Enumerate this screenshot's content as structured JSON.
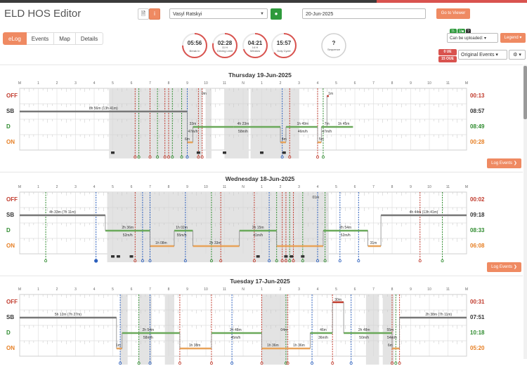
{
  "header": {
    "title": "ELD HOS Editor",
    "driver": "Vasyl Ratskyi",
    "date": "20-Jun-2025",
    "viewer_label": "Go to Viewer"
  },
  "tabs": [
    {
      "label": "eLog",
      "active": true
    },
    {
      "label": "Events",
      "active": false
    },
    {
      "label": "Map",
      "active": false
    },
    {
      "label": "Details",
      "active": false
    }
  ],
  "gauges": [
    {
      "value": "05:56",
      "sub": "",
      "label": "Break In",
      "fraction": 0.75
    },
    {
      "value": "02:28",
      "sub": "11 H",
      "label": "Driving Limit",
      "fraction": 0.78
    },
    {
      "value": "04:21",
      "sub": "14 H",
      "label": "Window",
      "fraction": 0.7
    },
    {
      "value": "15:57",
      "sub": "",
      "label": "Duty Cycle",
      "fraction": 0.65
    },
    {
      "value": "?",
      "sub": "",
      "label": "Sequence",
      "fraction": 0
    }
  ],
  "upload": {
    "badges": [
      {
        "text": "7/-",
        "color": "#2e9a3c"
      },
      {
        "text": "1/■",
        "color": "#2e9a3c"
      },
      {
        "text": "?",
        "color": "#333333"
      }
    ],
    "status": "Can be uploaded:",
    "legend": "Legend"
  },
  "ue_badges": [
    "0 UE",
    "15 OUE"
  ],
  "events_select": "Original Events",
  "gear_label": "⚙ ▾",
  "hour_labels": [
    "M",
    "1",
    "2",
    "3",
    "4",
    "5",
    "6",
    "7",
    "8",
    "9",
    "10",
    "11",
    "N",
    "1",
    "2",
    "3",
    "4",
    "5",
    "6",
    "7",
    "8",
    "9",
    "10",
    "11",
    "M"
  ],
  "status_labels": {
    "off": "OFF",
    "sb": "SB",
    "d": "D",
    "on": "ON"
  },
  "log_events_label": "Log Events ❯",
  "days": [
    {
      "title": "Thursday 19-Jun-2025",
      "totals": {
        "off": "00:13",
        "sb": "08:57",
        "d": "08:49",
        "on": "00:28"
      },
      "segments": [
        {
          "s": "sb",
          "a": 0,
          "b": 9.0
        },
        {
          "s": "on",
          "a": 9.0,
          "b": 9.3
        },
        {
          "s": "d",
          "a": 9.3,
          "b": 11.5
        },
        {
          "s": "d",
          "a": 11.5,
          "b": 14.0
        },
        {
          "s": "on",
          "a": 14.0,
          "b": 14.3
        },
        {
          "s": "d",
          "a": 14.3,
          "b": 16.0
        },
        {
          "s": "on",
          "a": 16.0,
          "b": 16.2
        },
        {
          "s": "d",
          "a": 16.2,
          "b": 17.9
        },
        {
          "s": "off",
          "a": 16.5,
          "b": 16.6
        }
      ],
      "labels": [
        {
          "t": "8h 56m (13h 41m)",
          "h": 4.5,
          "s": "sb"
        },
        {
          "t": "33m",
          "h": 9.3,
          "s": "d"
        },
        {
          "t": "47m/h",
          "h": 9.3,
          "s": "d2"
        },
        {
          "t": "4h 23m",
          "h": 12.0,
          "s": "d"
        },
        {
          "t": "58m/h",
          "h": 12.0,
          "s": "d2"
        },
        {
          "t": "1h 49m",
          "h": 15.2,
          "s": "d"
        },
        {
          "t": "46m/h",
          "h": 15.2,
          "s": "d2"
        },
        {
          "t": "7m",
          "h": 16.5,
          "s": "d"
        },
        {
          "t": "47m/h",
          "h": 16.5,
          "s": "d2"
        },
        {
          "t": "1h 45m",
          "h": 17.4,
          "s": "d"
        },
        {
          "t": "1m",
          "h": 16.7,
          "s": "off"
        },
        {
          "t": "0m",
          "h": 9.9,
          "s": "off"
        },
        {
          "t": "6m",
          "h": 9.0,
          "s": "on"
        },
        {
          "t": "4m",
          "h": 14.2,
          "s": "on"
        },
        {
          "t": "5m",
          "h": 16.2,
          "s": "on"
        }
      ],
      "shades": [
        {
          "a": 4.8,
          "b": 9.8
        },
        {
          "a": 10.0,
          "b": 10.3
        },
        {
          "a": 11.0,
          "b": 12.3
        },
        {
          "a": 12.4,
          "b": 15.0
        }
      ],
      "verticals": [
        {
          "h": 6.2,
          "c": "#c0392b"
        },
        {
          "h": 6.4,
          "c": "#2e8b2e"
        },
        {
          "h": 7.0,
          "c": "#c0392b"
        },
        {
          "h": 7.4,
          "c": "#2e8b2e"
        },
        {
          "h": 7.8,
          "c": "#c0392b"
        },
        {
          "h": 8.0,
          "c": "#c0392b"
        },
        {
          "h": 8.2,
          "c": "#2e8b2e"
        },
        {
          "h": 8.7,
          "c": "#2e8b2e"
        },
        {
          "h": 9.0,
          "c": "#2b5fbd"
        },
        {
          "h": 9.6,
          "c": "#c0392b"
        },
        {
          "h": 9.8,
          "c": "#c0392b"
        },
        {
          "h": 14.1,
          "c": "#2b5fbd"
        },
        {
          "h": 14.5,
          "c": "#c0392b"
        },
        {
          "h": 16.0,
          "c": "#c0392b"
        },
        {
          "h": 16.3,
          "c": "#2e8b2e"
        }
      ],
      "flags": [
        14.0
      ],
      "trucks": [
        5.0,
        9.6,
        11.0,
        13.0,
        14.2
      ],
      "marker": null
    },
    {
      "title": "Wednesday 18-Jun-2025",
      "totals": {
        "off": "00:02",
        "sb": "09:18",
        "d": "08:33",
        "on": "06:08"
      },
      "segments": [
        {
          "s": "sb",
          "a": 0,
          "b": 4.6
        },
        {
          "s": "d",
          "a": 4.6,
          "b": 7.0
        },
        {
          "s": "on",
          "a": 7.0,
          "b": 8.3
        },
        {
          "s": "d",
          "a": 8.3,
          "b": 9.3
        },
        {
          "s": "on",
          "a": 9.3,
          "b": 11.8
        },
        {
          "s": "d",
          "a": 11.8,
          "b": 13.8
        },
        {
          "s": "on",
          "a": 13.8,
          "b": 16.3
        },
        {
          "s": "d",
          "a": 16.3,
          "b": 18.7
        },
        {
          "s": "on",
          "a": 18.7,
          "b": 19.4
        },
        {
          "s": "sb",
          "a": 19.4,
          "b": 24
        }
      ],
      "labels": [
        {
          "t": "4h 33m (7h 11m)",
          "h": 2.3,
          "s": "sb"
        },
        {
          "t": "2h 36m",
          "h": 5.8,
          "s": "d"
        },
        {
          "t": "52m/h",
          "h": 5.8,
          "s": "d2"
        },
        {
          "t": "1h 08m",
          "h": 7.6,
          "s": "on"
        },
        {
          "t": "1h 02m",
          "h": 8.7,
          "s": "d"
        },
        {
          "t": "55m/h",
          "h": 8.7,
          "s": "d2"
        },
        {
          "t": "2h 33m",
          "h": 10.5,
          "s": "on"
        },
        {
          "t": "2h 15m",
          "h": 12.8,
          "s": "d"
        },
        {
          "t": "41m/h",
          "h": 12.8,
          "s": "d2"
        },
        {
          "t": "2h 54m",
          "h": 17.5,
          "s": "d"
        },
        {
          "t": "52m/h",
          "h": 17.5,
          "s": "d2"
        },
        {
          "t": "31m",
          "h": 19.0,
          "s": "on"
        },
        {
          "t": "4h 44m (13h 41m)",
          "h": 21.7,
          "s": "sb"
        },
        {
          "t": "01m",
          "h": 15.9,
          "s": "off"
        }
      ],
      "shades": [
        {
          "a": 4.7,
          "b": 16.6
        }
      ],
      "verticals": [
        {
          "h": 1.4,
          "c": "#2e8b2e"
        },
        {
          "h": 4.1,
          "c": "#2b5fbd"
        },
        {
          "h": 6.2,
          "c": "#c0392b"
        },
        {
          "h": 6.6,
          "c": "#2b5fbd"
        },
        {
          "h": 7.0,
          "c": "#2b5fbd"
        },
        {
          "h": 8.9,
          "c": "#2b5fbd"
        },
        {
          "h": 10.3,
          "c": "#2e8b2e"
        },
        {
          "h": 10.8,
          "c": "#c0392b"
        },
        {
          "h": 12.6,
          "c": "#c0392b"
        },
        {
          "h": 13.4,
          "c": "#2b5fbd"
        },
        {
          "h": 13.8,
          "c": "#2e8b2e"
        },
        {
          "h": 14.1,
          "c": "#c0392b"
        },
        {
          "h": 14.3,
          "c": "#c0392b"
        },
        {
          "h": 14.5,
          "c": "#2e8b2e"
        },
        {
          "h": 14.7,
          "c": "#c0392b"
        },
        {
          "h": 15.2,
          "c": "#2e8b2e"
        },
        {
          "h": 16.0,
          "c": "#2b5fbd"
        },
        {
          "h": 16.4,
          "c": "#2e8b2e"
        },
        {
          "h": 17.2,
          "c": "#2b5fbd"
        },
        {
          "h": 18.2,
          "c": "#2b5fbd"
        },
        {
          "h": 21.5,
          "c": "#c0392b"
        },
        {
          "h": 22.7,
          "c": "#2e8b2e"
        }
      ],
      "flags": [
        6.4,
        8.9,
        12.3,
        13.0,
        14.3,
        14.6,
        15.8,
        17.0,
        18.3
      ],
      "trucks": [
        5.0,
        5.3,
        6.0,
        12.8,
        14.3,
        14.6,
        15.2
      ],
      "marker": 4.1
    },
    {
      "title": "Tuesday 17-Jun-2025",
      "totals": {
        "off": "00:31",
        "sb": "07:51",
        "d": "10:18",
        "on": "05:20"
      },
      "segments": [
        {
          "s": "sb",
          "a": 0,
          "b": 5.2
        },
        {
          "s": "on",
          "a": 5.2,
          "b": 5.5
        },
        {
          "s": "d",
          "a": 5.5,
          "b": 8.6
        },
        {
          "s": "on",
          "a": 8.6,
          "b": 10.3
        },
        {
          "s": "d",
          "a": 10.3,
          "b": 13.0
        },
        {
          "s": "on",
          "a": 13.0,
          "b": 14.2
        },
        {
          "s": "on",
          "a": 14.2,
          "b": 15.6
        },
        {
          "s": "d",
          "a": 15.6,
          "b": 16.8
        },
        {
          "s": "off",
          "a": 16.8,
          "b": 17.4
        },
        {
          "s": "d",
          "a": 17.4,
          "b": 20.0
        },
        {
          "s": "on",
          "a": 20.0,
          "b": 20.4
        },
        {
          "s": "sb",
          "a": 20.4,
          "b": 24
        }
      ],
      "labels": [
        {
          "t": "5h 12m (7h 27m)",
          "h": 2.6,
          "s": "sb"
        },
        {
          "t": "2h 54m",
          "h": 6.9,
          "s": "d"
        },
        {
          "t": "58m/h",
          "h": 6.9,
          "s": "d2"
        },
        {
          "t": "1h 38m",
          "h": 9.4,
          "s": "on"
        },
        {
          "t": "2h 48m",
          "h": 11.6,
          "s": "d"
        },
        {
          "t": "45m/h",
          "h": 11.6,
          "s": "d2"
        },
        {
          "t": "04m",
          "h": 14.2,
          "s": "d"
        },
        {
          "t": "1h 36m",
          "h": 13.6,
          "s": "on"
        },
        {
          "t": "1h 36m",
          "h": 15.0,
          "s": "on"
        },
        {
          "t": "46m",
          "h": 16.3,
          "s": "d"
        },
        {
          "t": "36m/h",
          "h": 16.3,
          "s": "d2"
        },
        {
          "t": "2h 48m",
          "h": 18.5,
          "s": "d"
        },
        {
          "t": "50m/h",
          "h": 18.5,
          "s": "d2"
        },
        {
          "t": "55m",
          "h": 19.9,
          "s": "d"
        },
        {
          "t": "54m/h",
          "h": 20.0,
          "s": "d2"
        },
        {
          "t": "2h 38m (7h 11m)",
          "h": 22.5,
          "s": "sb"
        },
        {
          "t": "30m",
          "h": 17.1,
          "s": "off"
        },
        {
          "t": "6m",
          "h": 19.9,
          "s": "on"
        },
        {
          "t": "1m",
          "h": 5.3,
          "s": "on"
        }
      ],
      "shades": [
        {
          "a": 5.4,
          "b": 5.8
        },
        {
          "a": 6.4,
          "b": 7.1
        },
        {
          "a": 7.8,
          "b": 8.3
        },
        {
          "a": 13.0,
          "b": 14.4
        },
        {
          "a": 18.6,
          "b": 19.3
        },
        {
          "a": 19.5,
          "b": 20.1
        }
      ],
      "verticals": [
        {
          "h": 5.4,
          "c": "#2b5fbd"
        },
        {
          "h": 6.4,
          "c": "#2e8b2e"
        },
        {
          "h": 7.0,
          "c": "#2b5fbd"
        },
        {
          "h": 8.6,
          "c": "#c0392b"
        },
        {
          "h": 10.3,
          "c": "#c0392b"
        },
        {
          "h": 11.4,
          "c": "#2b5fbd"
        },
        {
          "h": 13.0,
          "c": "#c0392b"
        },
        {
          "h": 14.3,
          "c": "#2e8b2e"
        },
        {
          "h": 14.4,
          "c": "#c0392b"
        },
        {
          "h": 15.7,
          "c": "#2b5fbd"
        },
        {
          "h": 16.8,
          "c": "#c0392b"
        },
        {
          "h": 17.8,
          "c": "#2b5fbd"
        },
        {
          "h": 20.0,
          "c": "#c0392b"
        },
        {
          "h": 20.2,
          "c": "#2e8b2e"
        },
        {
          "h": 20.4,
          "c": "#c0392b"
        }
      ],
      "flags": [
        5.3
      ],
      "trucks": [],
      "marker": null
    }
  ]
}
